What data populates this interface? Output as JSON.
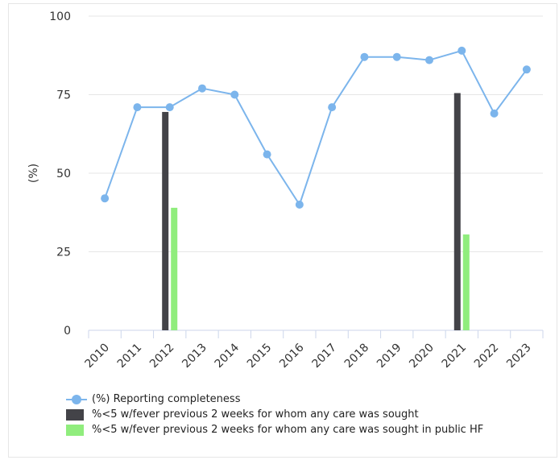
{
  "chart_data": {
    "type": "bar+line",
    "title": "",
    "xlabel": "",
    "ylabel": "(%)",
    "categories": [
      "2010",
      "2011",
      "2012",
      "2013",
      "2014",
      "2015",
      "2016",
      "2017",
      "2018",
      "2019",
      "2020",
      "2021",
      "2022",
      "2023"
    ],
    "ylim": [
      0,
      100
    ],
    "yticks": [
      "0",
      "25",
      "50",
      "75",
      "100"
    ],
    "grid": true,
    "legend_position": "bottom-left",
    "series": [
      {
        "name": "(%) Reporting completeness",
        "kind": "line",
        "color": "#7cb5ec",
        "values": [
          42,
          71,
          71,
          77,
          75,
          56,
          40,
          71,
          87,
          87,
          86,
          89,
          69,
          83
        ]
      },
      {
        "name": "%<5 w/fever previous 2 weeks for whom any care was sought",
        "kind": "bar",
        "color": "#434348",
        "values": [
          null,
          null,
          69.5,
          null,
          null,
          null,
          null,
          null,
          null,
          null,
          null,
          75.5,
          null,
          null
        ]
      },
      {
        "name": "%<5 w/fever previous 2 weeks for whom any care was sought in public HF",
        "kind": "bar",
        "color": "#90ed7d",
        "values": [
          null,
          null,
          39,
          null,
          null,
          null,
          null,
          null,
          null,
          null,
          null,
          30.5,
          null,
          null
        ]
      }
    ]
  }
}
